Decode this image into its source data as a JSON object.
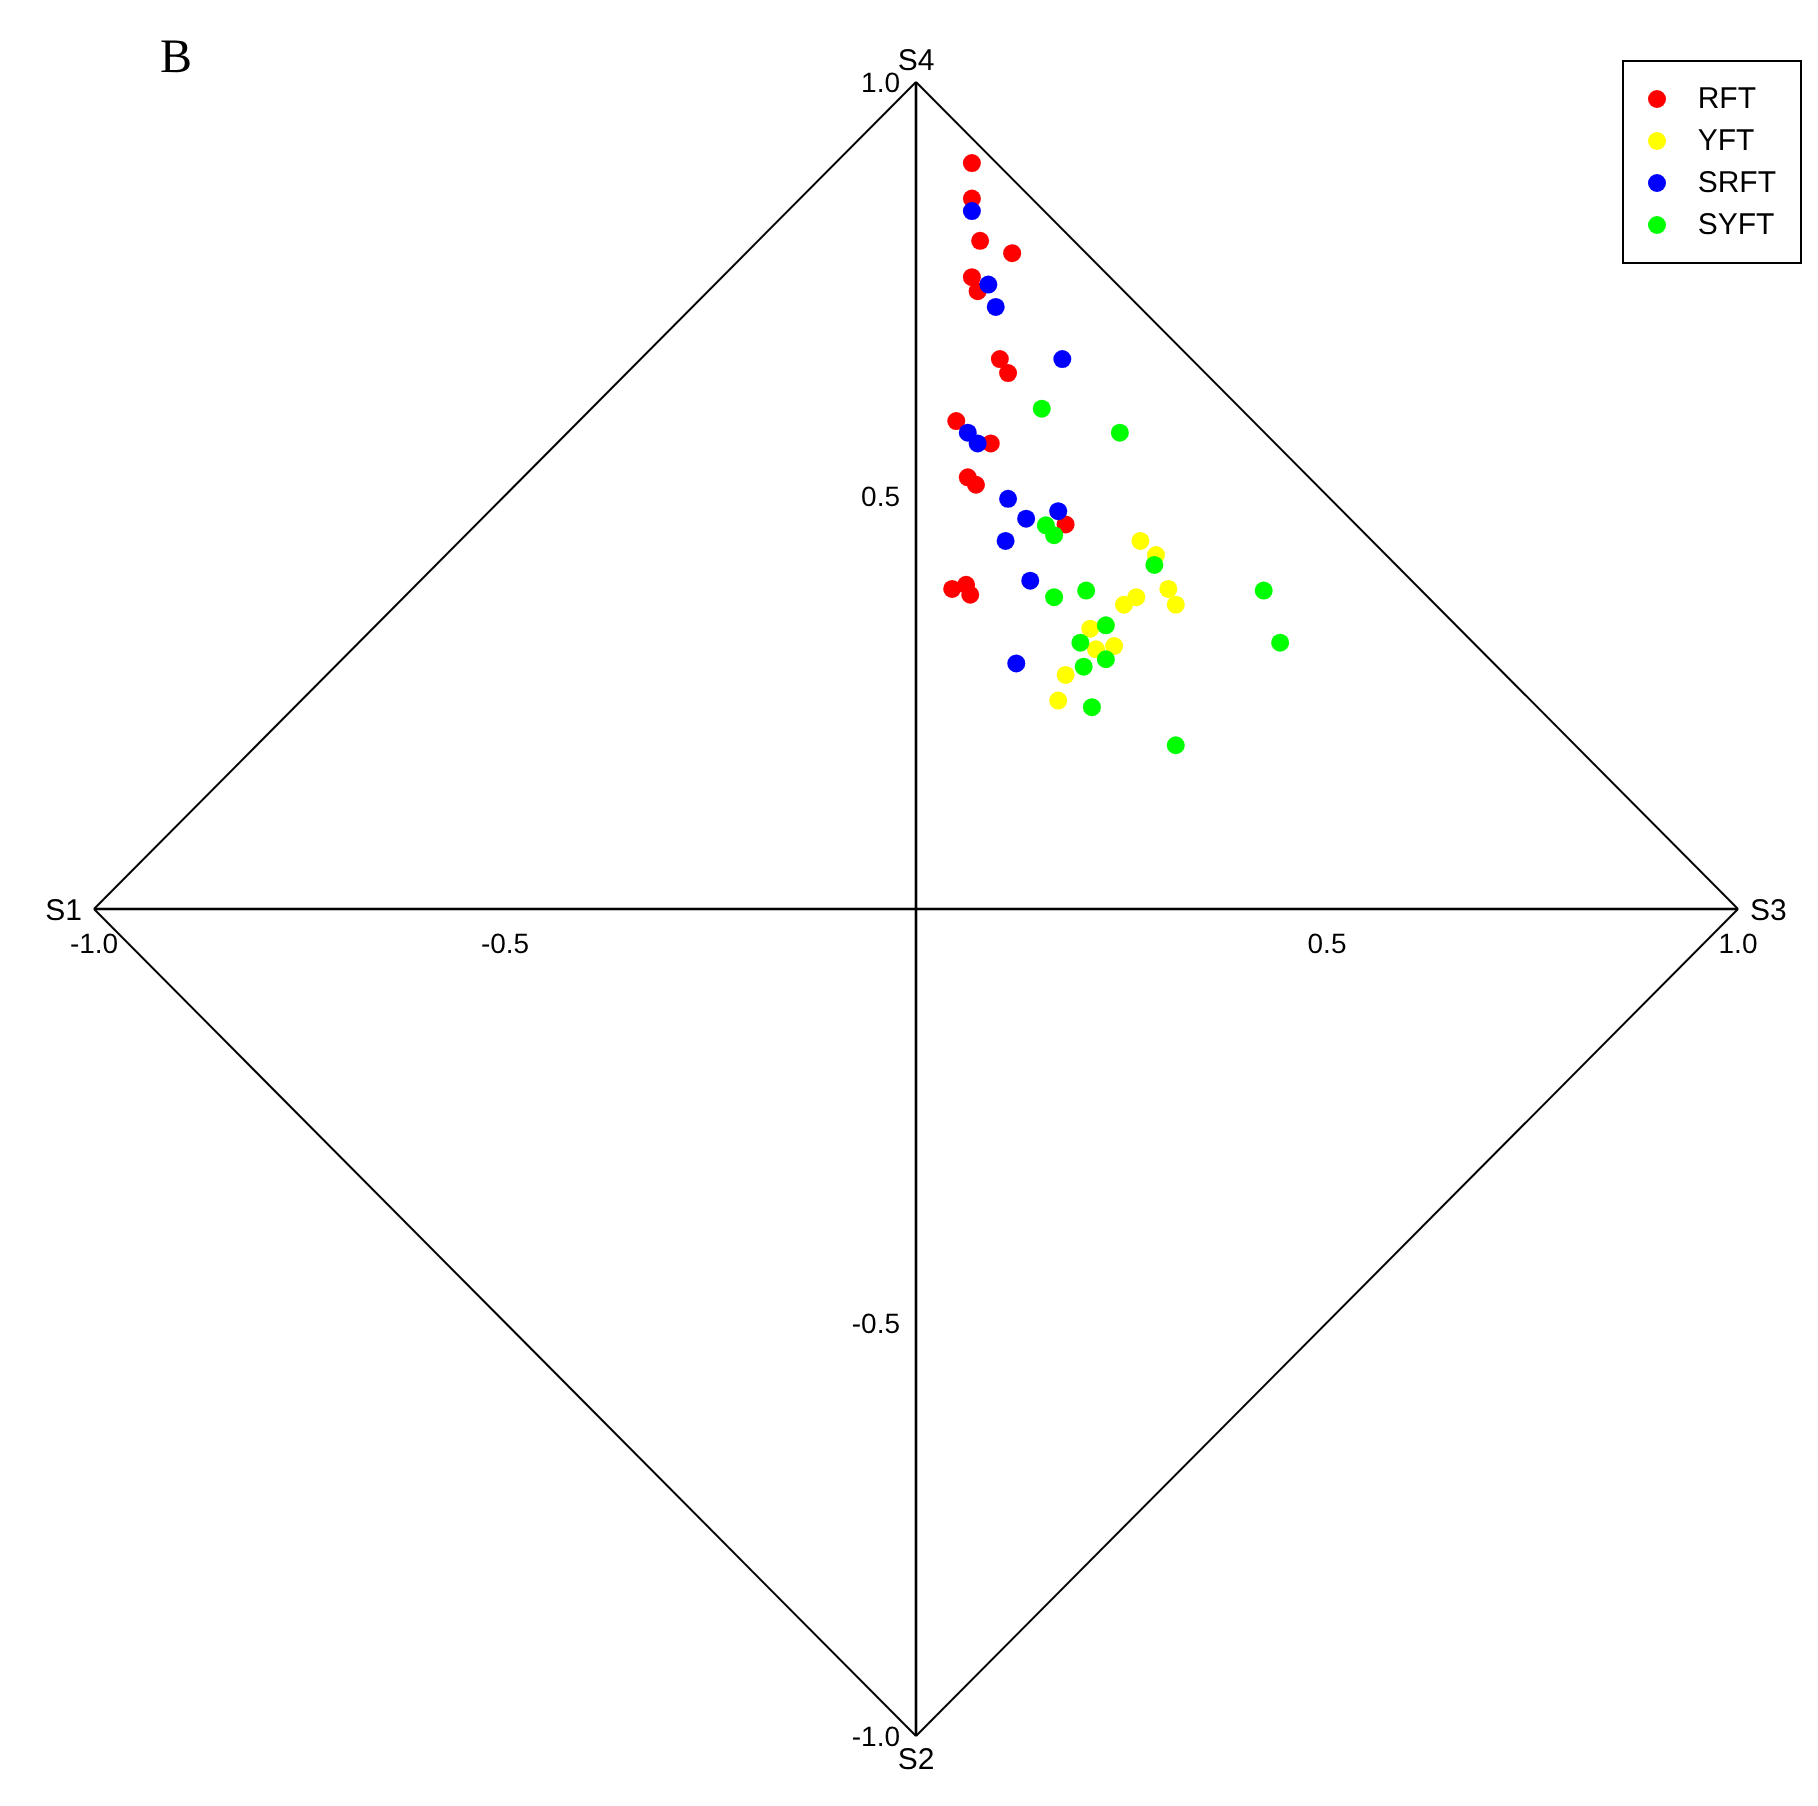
{
  "chart_data": {
    "type": "scatter",
    "title": "B",
    "xlim": [
      -1,
      1
    ],
    "ylim": [
      -1,
      1
    ],
    "xticks": [
      {
        "value": -1,
        "label": "-1.0"
      },
      -0.5,
      0.5,
      {
        "value": 1,
        "label": "1.0"
      }
    ],
    "yticks": [
      {
        "value": 1,
        "label": "1.0"
      },
      0.5,
      -0.5,
      {
        "value": -1,
        "label": "-1.0"
      }
    ],
    "grid": false,
    "legend": "top right",
    "marker": "circle",
    "annotations": [
      "S1",
      "S2",
      "S3",
      "S4"
    ],
    "series": [
      {
        "name": "RFT",
        "color": "#ff0000",
        "x": [
          0.068,
          0.068,
          0.078,
          0.117,
          0.068,
          0.075,
          0.102,
          0.112,
          0.049,
          0.091,
          0.063,
          0.073,
          0.182,
          0.044,
          0.061,
          0.066
        ],
        "values": [
          0.902,
          0.859,
          0.808,
          0.793,
          0.764,
          0.747,
          0.665,
          0.648,
          0.59,
          0.563,
          0.522,
          0.513,
          0.465,
          0.387,
          0.392,
          0.38
        ]
      },
      {
        "name": "YFT",
        "color": "#ffff00",
        "x": [
          0.273,
          0.292,
          0.307,
          0.316,
          0.268,
          0.253,
          0.212,
          0.241,
          0.219,
          0.182,
          0.173
        ],
        "values": [
          0.445,
          0.428,
          0.387,
          0.368,
          0.377,
          0.368,
          0.339,
          0.318,
          0.314,
          0.283,
          0.252
        ]
      },
      {
        "name": "SRFT",
        "color": "#0000ff",
        "x": [
          0.068,
          0.088,
          0.097,
          0.178,
          0.063,
          0.075,
          0.112,
          0.134,
          0.173,
          0.109,
          0.139,
          0.122
        ],
        "values": [
          0.844,
          0.755,
          0.728,
          0.665,
          0.576,
          0.563,
          0.496,
          0.472,
          0.481,
          0.445,
          0.397,
          0.297
        ]
      },
      {
        "name": "SYFT",
        "color": "#00ff00",
        "x": [
          0.153,
          0.248,
          0.158,
          0.168,
          0.29,
          0.207,
          0.168,
          0.423,
          0.443,
          0.231,
          0.2,
          0.231,
          0.204,
          0.214,
          0.316
        ],
        "values": [
          0.605,
          0.576,
          0.464,
          0.452,
          0.416,
          0.385,
          0.377,
          0.385,
          0.322,
          0.343,
          0.322,
          0.302,
          0.293,
          0.244,
          0.198
        ]
      }
    ]
  }
}
